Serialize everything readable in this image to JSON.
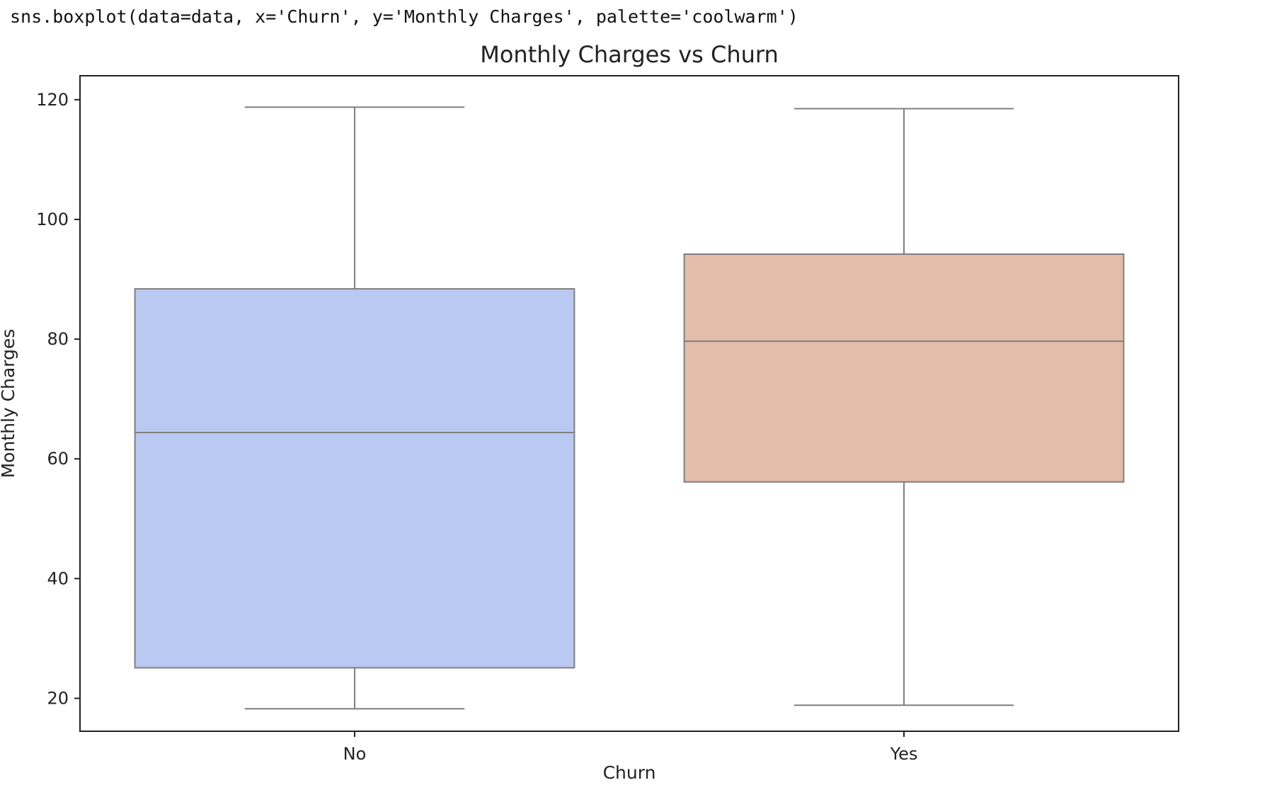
{
  "code": {
    "text": "sns.boxplot(data=data, x='Churn', y='Monthly Charges', palette='coolwarm')"
  },
  "chart_data": {
    "type": "box",
    "title": "Monthly Charges vs Churn",
    "xlabel": "Churn",
    "ylabel": "Monthly Charges",
    "ylim": [
      14.5,
      124
    ],
    "yticks": [
      20,
      40,
      60,
      80,
      100,
      120
    ],
    "grid": false,
    "categories": [
      "No",
      "Yes"
    ],
    "boxes": [
      {
        "category": "No",
        "whisker_low": 18.25,
        "q1": 25.1,
        "median": 64.4,
        "q3": 88.4,
        "whisker_high": 118.75,
        "color": "#b9c9f1"
      },
      {
        "category": "Yes",
        "whisker_low": 18.85,
        "q1": 56.15,
        "median": 79.65,
        "q3": 94.2,
        "whisker_high": 118.5,
        "color": "#e3bcaa"
      }
    ],
    "line_color": "#7f7f7f"
  }
}
